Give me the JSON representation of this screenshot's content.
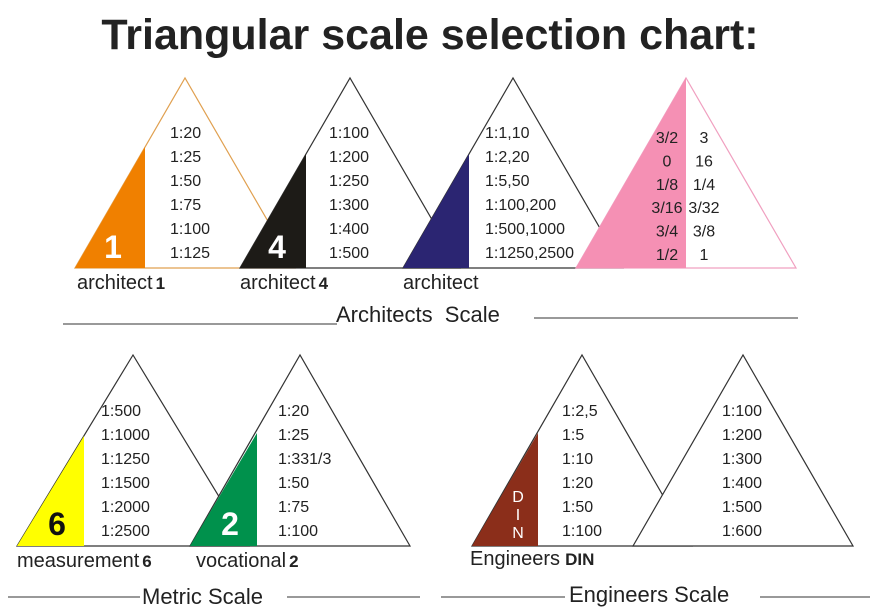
{
  "title": "Triangular scale selection chart:",
  "colors": {
    "architect1": "#f08000",
    "architect4": "#1d1b17",
    "architect": "#2b2572",
    "fraction": "#f590b4",
    "measurement6": "#ffff00",
    "vocational2": "#00914c",
    "din": "#8b2e1a"
  },
  "architect1": {
    "number": "1",
    "label": "architect",
    "label_suffix": "1",
    "scales": [
      "1:20",
      "1:25",
      "1:50",
      "1:75",
      "1:100",
      "1:125"
    ]
  },
  "architect4": {
    "number": "4",
    "label": "architect",
    "label_suffix": "4",
    "scales": [
      "1:100",
      "1:200",
      "1:250",
      "1:300",
      "1:400",
      "1:500"
    ]
  },
  "architect": {
    "label": "architect",
    "scales": [
      "1:1,10",
      "1:2,20",
      "1:5,50",
      "1:100,200",
      "1:500,1000",
      "1:1250,2500"
    ]
  },
  "fraction": {
    "left": [
      "3/2",
      "0",
      "1/8",
      "3/16",
      "3/4",
      "1/2"
    ],
    "right": [
      "3",
      "16",
      "1/4",
      "3/32",
      "3/8",
      "1"
    ]
  },
  "architects_section": "Architects  Scale",
  "measurement6": {
    "number": "6",
    "label": "measurement",
    "label_suffix": "6",
    "scales": [
      "1:500",
      "1:1000",
      "1:1250",
      "1:1500",
      "1:2000",
      "1:2500"
    ]
  },
  "vocational2": {
    "number": "2",
    "label": "vocational",
    "label_suffix": "2",
    "scales": [
      "1:20",
      "1:25",
      "1:331/3",
      "1:50",
      "1:75",
      "1:100"
    ]
  },
  "metric_section": "Metric Scale",
  "din": {
    "letters": [
      "D",
      "I",
      "N"
    ],
    "label": "Engineers",
    "label_suffix": "DIN",
    "scales": [
      "1:2,5",
      "1:5",
      "1:10",
      "1:20",
      "1:50",
      "1:100"
    ]
  },
  "engineers": {
    "scales": [
      "1:100",
      "1:200",
      "1:300",
      "1:400",
      "1:500",
      "1:600"
    ]
  },
  "engineers_section": "Engineers Scale"
}
